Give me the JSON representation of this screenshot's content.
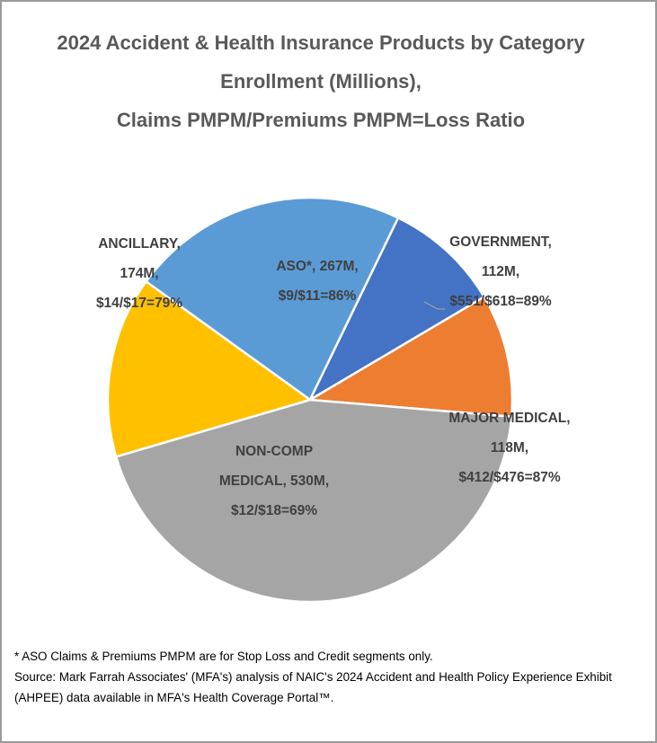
{
  "chart_data": {
    "type": "pie",
    "title_lines": [
      "2024 Accident & Health Insurance Products by Category",
      "Enrollment (Millions),",
      "Claims PMPM/Premiums PMPM=Loss Ratio"
    ],
    "slices": [
      {
        "category": "ASO*",
        "enrollment_millions": 267,
        "label_lines": [
          "ASO*, 267M,",
          "$9/$11=86%"
        ],
        "color": "#5B9BD5"
      },
      {
        "category": "GOVERNMENT",
        "enrollment_millions": 112,
        "label_lines": [
          "GOVERNMENT,",
          "112M,",
          "$551/$618=89%"
        ],
        "color": "#4472C4"
      },
      {
        "category": "MAJOR MEDICAL",
        "enrollment_millions": 118,
        "label_lines": [
          "MAJOR MEDICAL,",
          "118M,",
          "$412/$476=87%"
        ],
        "color": "#ED7D31"
      },
      {
        "category": "NON-COMP MEDICAL",
        "enrollment_millions": 530,
        "label_lines": [
          "NON-COMP",
          "MEDICAL, 530M,",
          "$12/$18=69%"
        ],
        "color": "#A5A5A5"
      },
      {
        "category": "ANCILLARY",
        "enrollment_millions": 174,
        "label_lines": [
          "ANCILLARY,",
          "174M,",
          "$14/$17=79%"
        ],
        "color": "#FFC000"
      }
    ],
    "legend": "none"
  },
  "footnotes": {
    "line1": "* ASO Claims & Premiums PMPM are for Stop Loss and Credit segments only.",
    "line2": "Source: Mark Farrah Associates' (MFA's) analysis of NAIC's 2024 Accident and Health Policy Experience Exhibit",
    "line3": "(AHPEE) data available in MFA's Health Coverage Portal™."
  }
}
